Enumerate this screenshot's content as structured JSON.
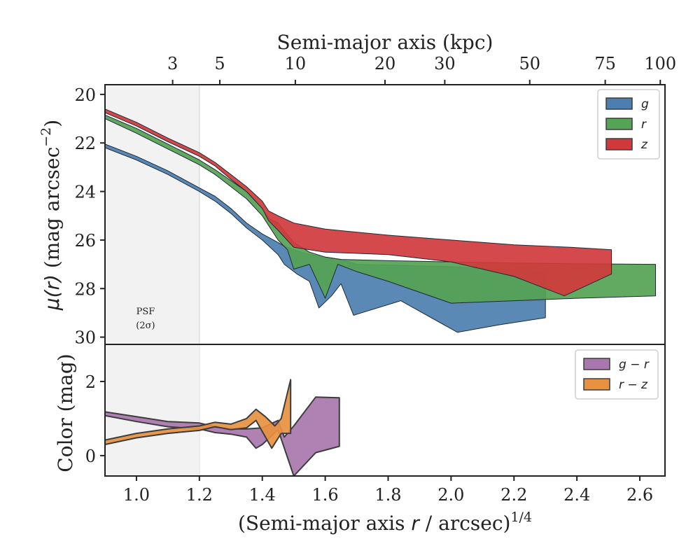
{
  "chart_data": [
    {
      "type": "area",
      "panel": "surface-brightness",
      "ylabel": "μ(r) (mag arcsec⁻²)",
      "top_xlabel": "Semi-major axis (kpc)",
      "top_tick_labels": [
        "3",
        "5",
        "10",
        "20",
        "30",
        "50",
        "75",
        "100"
      ],
      "top_tick_positions": [
        1.115,
        1.265,
        1.505,
        1.79,
        1.98,
        2.25,
        2.49,
        2.665
      ],
      "xlim": [
        0.9,
        2.68
      ],
      "ylim": [
        30.3,
        19.6
      ],
      "y_inverted": true,
      "yticks": [
        20,
        22,
        24,
        26,
        28,
        30
      ],
      "shaded_region": {
        "x": [
          0.9,
          1.2
        ],
        "label": "PSF",
        "sublabel": "(2σ)"
      },
      "legend": {
        "position": "top-right",
        "entries": [
          "g",
          "r",
          "z"
        ]
      },
      "series": [
        {
          "name": "g",
          "color": "#4c7fb0",
          "upper": [
            [
              0.9,
              22.05
            ],
            [
              1.0,
              22.55
            ],
            [
              1.1,
              23.15
            ],
            [
              1.2,
              23.85
            ],
            [
              1.25,
              24.2
            ],
            [
              1.3,
              24.7
            ],
            [
              1.35,
              25.3
            ],
            [
              1.4,
              25.75
            ],
            [
              1.45,
              26.1
            ],
            [
              1.47,
              26.25
            ],
            [
              1.5,
              26.4
            ],
            [
              1.55,
              26.6
            ],
            [
              1.6,
              26.7
            ],
            [
              1.65,
              26.8
            ],
            [
              1.7,
              27.0
            ],
            [
              1.85,
              27.05
            ],
            [
              2.0,
              27.1
            ],
            [
              2.15,
              27.2
            ],
            [
              2.3,
              27.3
            ]
          ],
          "lower": [
            [
              0.9,
              22.2
            ],
            [
              1.0,
              22.7
            ],
            [
              1.1,
              23.3
            ],
            [
              1.2,
              24.0
            ],
            [
              1.25,
              24.4
            ],
            [
              1.3,
              24.9
            ],
            [
              1.35,
              25.5
            ],
            [
              1.4,
              26.0
            ],
            [
              1.45,
              26.6
            ],
            [
              1.47,
              27.0
            ],
            [
              1.51,
              27.4
            ],
            [
              1.55,
              27.7
            ],
            [
              1.58,
              28.8
            ],
            [
              1.62,
              28.3
            ],
            [
              1.65,
              27.8
            ],
            [
              1.69,
              29.1
            ],
            [
              1.84,
              28.5
            ],
            [
              2.02,
              29.8
            ],
            [
              2.15,
              29.5
            ],
            [
              2.3,
              29.2
            ]
          ]
        },
        {
          "name": "r",
          "color": "#55a354",
          "upper": [
            [
              0.9,
              20.85
            ],
            [
              1.0,
              21.4
            ],
            [
              1.1,
              22.05
            ],
            [
              1.2,
              22.7
            ],
            [
              1.25,
              23.1
            ],
            [
              1.3,
              23.55
            ],
            [
              1.35,
              24.0
            ],
            [
              1.4,
              24.7
            ],
            [
              1.42,
              25.1
            ],
            [
              1.45,
              25.3
            ],
            [
              1.5,
              26.1
            ],
            [
              1.55,
              26.5
            ],
            [
              1.6,
              26.7
            ],
            [
              1.65,
              26.8
            ],
            [
              1.8,
              26.85
            ],
            [
              2.0,
              26.9
            ],
            [
              2.2,
              26.95
            ],
            [
              2.4,
              26.98
            ],
            [
              2.65,
              27.0
            ]
          ],
          "lower": [
            [
              0.9,
              21.0
            ],
            [
              1.0,
              21.6
            ],
            [
              1.1,
              22.25
            ],
            [
              1.2,
              22.9
            ],
            [
              1.25,
              23.3
            ],
            [
              1.3,
              23.8
            ],
            [
              1.35,
              24.3
            ],
            [
              1.4,
              25.0
            ],
            [
              1.45,
              26.0
            ],
            [
              1.48,
              26.4
            ],
            [
              1.5,
              27.2
            ],
            [
              1.55,
              27.0
            ],
            [
              1.6,
              28.4
            ],
            [
              1.64,
              27.0
            ],
            [
              1.7,
              27.3
            ],
            [
              1.8,
              27.7
            ],
            [
              2.0,
              28.6
            ],
            [
              2.2,
              28.5
            ],
            [
              2.4,
              28.4
            ],
            [
              2.65,
              28.3
            ]
          ]
        },
        {
          "name": "z",
          "color": "#d0393c",
          "upper": [
            [
              0.9,
              20.6
            ],
            [
              1.0,
              21.15
            ],
            [
              1.1,
              21.8
            ],
            [
              1.2,
              22.4
            ],
            [
              1.25,
              22.8
            ],
            [
              1.3,
              23.3
            ],
            [
              1.35,
              23.8
            ],
            [
              1.4,
              24.4
            ],
            [
              1.42,
              24.8
            ],
            [
              1.45,
              25.0
            ],
            [
              1.5,
              25.3
            ],
            [
              1.6,
              25.55
            ],
            [
              1.8,
              25.8
            ],
            [
              2.0,
              26.0
            ],
            [
              2.2,
              26.2
            ],
            [
              2.38,
              26.3
            ],
            [
              2.51,
              26.4
            ]
          ],
          "lower": [
            [
              0.9,
              20.75
            ],
            [
              1.0,
              21.3
            ],
            [
              1.1,
              21.95
            ],
            [
              1.2,
              22.55
            ],
            [
              1.25,
              22.95
            ],
            [
              1.3,
              23.5
            ],
            [
              1.35,
              24.0
            ],
            [
              1.4,
              24.7
            ],
            [
              1.42,
              25.2
            ],
            [
              1.45,
              25.6
            ],
            [
              1.5,
              26.3
            ],
            [
              1.6,
              26.5
            ],
            [
              1.8,
              26.6
            ],
            [
              2.0,
              26.9
            ],
            [
              2.2,
              27.5
            ],
            [
              2.36,
              28.3
            ],
            [
              2.51,
              27.4
            ]
          ]
        }
      ]
    },
    {
      "type": "area",
      "panel": "color",
      "xlabel": "(Semi-major axis r / arcsec)^1/4",
      "ylabel": "Color (mag)",
      "xlim": [
        0.9,
        2.68
      ],
      "ylim": [
        -0.55,
        3.0
      ],
      "xticks": [
        1.0,
        1.2,
        1.4,
        1.6,
        1.8,
        2.0,
        2.2,
        2.4,
        2.6
      ],
      "xtick_labels": [
        "1.0",
        "1.2",
        "1.4",
        "1.6",
        "1.8",
        "2.0",
        "2.2",
        "2.4",
        "2.6"
      ],
      "yticks": [
        0,
        2
      ],
      "legend": {
        "position": "top-right",
        "entries": [
          "g − r",
          "r − z"
        ]
      },
      "series": [
        {
          "name": "g − r",
          "color": "#a877ad",
          "upper": [
            [
              0.9,
              1.18
            ],
            [
              1.0,
              1.05
            ],
            [
              1.1,
              0.92
            ],
            [
              1.2,
              0.88
            ],
            [
              1.25,
              0.78
            ],
            [
              1.3,
              0.72
            ],
            [
              1.35,
              0.72
            ],
            [
              1.4,
              0.75
            ],
            [
              1.45,
              0.95
            ],
            [
              1.47,
              0.5
            ],
            [
              1.5,
              0.8
            ],
            [
              1.57,
              1.58
            ],
            [
              1.645,
              1.56
            ]
          ],
          "lower": [
            [
              0.9,
              1.08
            ],
            [
              1.0,
              0.92
            ],
            [
              1.1,
              0.78
            ],
            [
              1.2,
              0.72
            ],
            [
              1.25,
              0.62
            ],
            [
              1.3,
              0.58
            ],
            [
              1.35,
              0.5
            ],
            [
              1.38,
              0.2
            ],
            [
              1.4,
              0.3
            ],
            [
              1.45,
              0.7
            ],
            [
              1.5,
              -0.55
            ],
            [
              1.57,
              0.08
            ],
            [
              1.645,
              0.25
            ]
          ]
        },
        {
          "name": "r − z",
          "color": "#e8913f",
          "upper": [
            [
              0.9,
              0.42
            ],
            [
              1.0,
              0.6
            ],
            [
              1.1,
              0.72
            ],
            [
              1.2,
              0.8
            ],
            [
              1.25,
              0.9
            ],
            [
              1.3,
              0.85
            ],
            [
              1.35,
              1.0
            ],
            [
              1.38,
              1.25
            ],
            [
              1.41,
              1.05
            ],
            [
              1.44,
              0.8
            ],
            [
              1.46,
              1.0
            ],
            [
              1.49,
              2.05
            ]
          ],
          "lower": [
            [
              0.9,
              0.3
            ],
            [
              1.0,
              0.48
            ],
            [
              1.1,
              0.6
            ],
            [
              1.2,
              0.68
            ],
            [
              1.25,
              0.78
            ],
            [
              1.3,
              0.7
            ],
            [
              1.35,
              0.75
            ],
            [
              1.38,
              0.95
            ],
            [
              1.41,
              0.5
            ],
            [
              1.43,
              0.2
            ],
            [
              1.46,
              0.6
            ],
            [
              1.49,
              0.6
            ]
          ]
        }
      ]
    }
  ]
}
